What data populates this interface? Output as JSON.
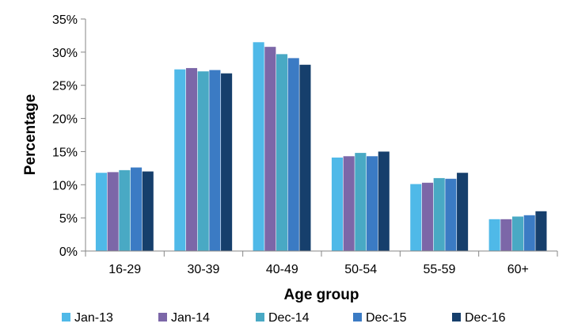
{
  "chart_data": {
    "type": "bar",
    "title": "",
    "xlabel": "Age group",
    "ylabel": "Percentage",
    "categories": [
      "16-29",
      "30-39",
      "40-49",
      "50-54",
      "55-59",
      "60+"
    ],
    "series": [
      {
        "name": "Jan-13",
        "color": "#4fb9e8",
        "values": [
          11.8,
          27.4,
          31.5,
          14.1,
          10.1,
          4.8
        ]
      },
      {
        "name": "Jan-14",
        "color": "#7c67a8",
        "values": [
          11.9,
          27.6,
          30.8,
          14.3,
          10.3,
          4.8
        ]
      },
      {
        "name": "Dec-14",
        "color": "#49a9c4",
        "values": [
          12.2,
          27.1,
          29.7,
          14.8,
          11.0,
          5.2
        ]
      },
      {
        "name": "Dec-15",
        "color": "#3b7bc4",
        "values": [
          12.6,
          27.3,
          29.1,
          14.3,
          10.9,
          5.4
        ]
      },
      {
        "name": "Dec-16",
        "color": "#163f6c",
        "values": [
          12.0,
          26.8,
          28.1,
          15.0,
          11.8,
          6.0
        ]
      }
    ],
    "ylim": [
      0,
      35
    ],
    "yticks": [
      0,
      5,
      10,
      15,
      20,
      25,
      30,
      35
    ],
    "ytick_labels": [
      "0%",
      "5%",
      "10%",
      "15%",
      "20%",
      "25%",
      "30%",
      "35%"
    ],
    "grid": false,
    "legend_position": "bottom"
  }
}
